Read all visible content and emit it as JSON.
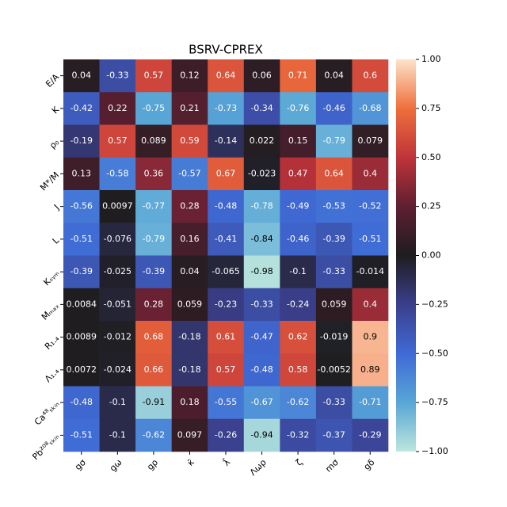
{
  "chart_data": {
    "type": "heatmap",
    "title": "BSRV-CPREX",
    "x_categories": [
      "gσ",
      "gω",
      "gρ",
      "κ̄",
      "λ̄",
      "Λωρ",
      "ζ",
      "mσ",
      "gδ"
    ],
    "y_categories": [
      "E/A",
      "K",
      "ρ₀",
      "M*/M",
      "J",
      "L",
      "Kₛᵧₘ",
      "Mₘₐₓ",
      "R₁.₄",
      "Λ₁.₄",
      "Ca⁴⁸ₛₖᵢₙ",
      "Pb²⁰⁸ₛₖᵢₙ"
    ],
    "values": [
      [
        0.04,
        -0.33,
        0.57,
        0.12,
        0.64,
        0.06,
        0.71,
        0.04,
        0.6
      ],
      [
        -0.42,
        0.22,
        -0.75,
        0.21,
        -0.73,
        -0.34,
        -0.76,
        -0.46,
        -0.68
      ],
      [
        -0.19,
        0.57,
        0.089,
        0.59,
        -0.14,
        0.022,
        0.15,
        -0.79,
        0.079
      ],
      [
        0.13,
        -0.58,
        0.36,
        -0.57,
        0.67,
        -0.023,
        0.47,
        0.64,
        0.4
      ],
      [
        -0.56,
        0.0097,
        -0.77,
        0.28,
        -0.48,
        -0.78,
        -0.49,
        -0.53,
        -0.52
      ],
      [
        -0.51,
        -0.076,
        -0.79,
        0.16,
        -0.41,
        -0.84,
        -0.46,
        -0.39,
        -0.51
      ],
      [
        -0.39,
        -0.025,
        -0.39,
        0.04,
        -0.065,
        -0.98,
        -0.1,
        -0.33,
        -0.014
      ],
      [
        0.0084,
        -0.051,
        0.28,
        0.059,
        -0.23,
        -0.33,
        -0.24,
        0.059,
        0.4
      ],
      [
        0.0089,
        -0.012,
        0.68,
        -0.18,
        0.61,
        -0.47,
        0.62,
        -0.019,
        0.9
      ],
      [
        0.0072,
        -0.024,
        0.66,
        -0.18,
        0.57,
        -0.48,
        0.58,
        -0.0052,
        0.89
      ],
      [
        -0.48,
        -0.1,
        -0.91,
        0.18,
        -0.55,
        -0.67,
        -0.62,
        -0.33,
        -0.71
      ],
      [
        -0.51,
        -0.1,
        -0.62,
        0.097,
        -0.26,
        -0.94,
        -0.32,
        -0.37,
        -0.29
      ]
    ],
    "clim": [
      -1,
      1
    ],
    "colors": [
      "#bde6dd",
      "#58a6d6",
      "#3f6ad6",
      "#3b3f8c",
      "#1e1d1f",
      "#5e1f32",
      "#c0343a",
      "#ef6f3c",
      "#fde3c9"
    ],
    "colorbar_ticks": [
      {
        "value": 1,
        "label": "1.00"
      },
      {
        "value": 0.75,
        "label": "0.75"
      },
      {
        "value": 0.5,
        "label": "0.50"
      },
      {
        "value": 0.25,
        "label": "0.25"
      },
      {
        "value": 0,
        "label": "0.00"
      },
      {
        "value": -0.25,
        "label": "−0.25"
      },
      {
        "value": -0.5,
        "label": "−0.50"
      },
      {
        "value": -0.75,
        "label": "−0.75"
      },
      {
        "value": -1,
        "label": "−1.00"
      }
    ]
  }
}
